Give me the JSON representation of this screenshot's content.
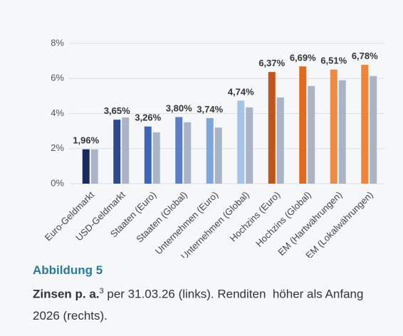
{
  "chart_data": {
    "type": "bar",
    "categories": [
      "Euro-Geldmarkt",
      "USD-Geldmarkt",
      "Staaten (Euro)",
      "Staaten (Global)",
      "Unternehmen (Euro)",
      "Unternehmen (Global)",
      "Hochzins (Euro)",
      "Hochzins (Global)",
      "EM (Hartwährungen)",
      "EM (Lokalwährungen)"
    ],
    "series": [
      {
        "colors": [
          "#1b2a5e",
          "#2f4a8a",
          "#3d67b5",
          "#5b7fc6",
          "#7fa6d8",
          "#a6c4e6",
          "#c2561a",
          "#e06b1e",
          "#ec8a44",
          "#f0843a"
        ],
        "values": [
          1.96,
          3.65,
          3.26,
          3.8,
          3.74,
          4.74,
          6.37,
          6.69,
          6.51,
          6.78
        ],
        "value_labels": [
          "1,96%",
          "3,65%",
          "3,26%",
          "3,80%",
          "3,74%",
          "4,74%",
          "6,37%",
          "6,69%",
          "6,51%",
          "6,78%"
        ]
      },
      {
        "color": "#aab4c7",
        "values": [
          1.95,
          3.78,
          2.93,
          3.5,
          3.2,
          4.35,
          4.92,
          5.57,
          5.9,
          6.14
        ]
      }
    ],
    "ylim": [
      0,
      8
    ],
    "yticks": [
      {
        "value": 0,
        "label": "0%"
      },
      {
        "value": 2,
        "label": "2%"
      },
      {
        "value": 4,
        "label": "4%"
      },
      {
        "value": 6,
        "label": "6%"
      },
      {
        "value": 8,
        "label": "8%"
      }
    ],
    "grid": true
  },
  "caption": {
    "label": "Abbildung 5",
    "bold": "Zinsen p. a.",
    "footnote": "3",
    "text": " per 31.03.26 (links). Renditen  höher als Anfang 2026 (rechts)."
  }
}
